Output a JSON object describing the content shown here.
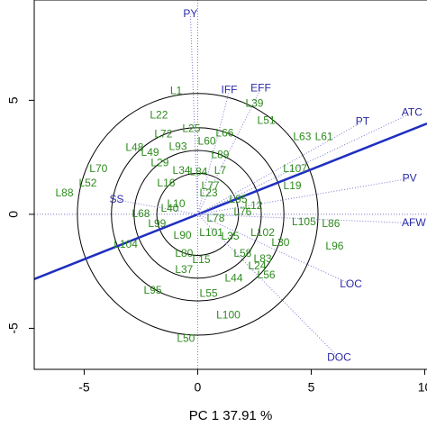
{
  "chart_data": {
    "type": "biplot",
    "xlabel": "PC 1 37.91 %",
    "xlim": [
      -7.2,
      10.1
    ],
    "ylim": [
      -6.8,
      9.4
    ],
    "xticks": [
      -5,
      0,
      5,
      10
    ],
    "yticks": [
      -5,
      0,
      5
    ],
    "circles": [
      1.8,
      2.8,
      3.8,
      5.3
    ],
    "axis_line": {
      "x": [
        -7.2,
        10.1
      ],
      "y": [
        -2.84,
        3.98
      ],
      "color": "#1f2fbf"
    },
    "variable_color": "#2a2aa8",
    "point_color": "#2e8b1e",
    "variables": [
      {
        "label": "PY",
        "x": -0.32,
        "y": 8.78
      },
      {
        "label": "IFF",
        "x": 1.39,
        "y": 5.43
      },
      {
        "label": "EFF",
        "x": 2.78,
        "y": 5.51
      },
      {
        "label": "PT",
        "x": 7.26,
        "y": 4.06
      },
      {
        "label": "ATC",
        "x": 9.44,
        "y": 4.45
      },
      {
        "label": "PV",
        "x": 9.33,
        "y": 1.57
      },
      {
        "label": "AFW",
        "x": 9.52,
        "y": -0.39
      },
      {
        "label": "LOC",
        "x": 6.75,
        "y": -3.07
      },
      {
        "label": "DOC",
        "x": 6.23,
        "y": -6.3
      },
      {
        "label": "SS",
        "x": -3.57,
        "y": 0.63
      }
    ],
    "points": [
      {
        "label": "L1",
        "x": -0.95,
        "y": 5.39
      },
      {
        "label": "L22",
        "x": -1.71,
        "y": 4.33
      },
      {
        "label": "L25",
        "x": -0.28,
        "y": 3.74
      },
      {
        "label": "L39",
        "x": 2.5,
        "y": 4.84
      },
      {
        "label": "L51",
        "x": 3.02,
        "y": 4.09
      },
      {
        "label": "L66",
        "x": 1.19,
        "y": 3.54
      },
      {
        "label": "L63",
        "x": 4.6,
        "y": 3.39
      },
      {
        "label": "L61",
        "x": 5.56,
        "y": 3.39
      },
      {
        "label": "L72",
        "x": -1.51,
        "y": 3.5
      },
      {
        "label": "L60",
        "x": 0.4,
        "y": 3.19
      },
      {
        "label": "L93",
        "x": -0.87,
        "y": 2.95
      },
      {
        "label": "L48",
        "x": -2.78,
        "y": 2.91
      },
      {
        "label": "L89",
        "x": 0.99,
        "y": 2.6
      },
      {
        "label": "L49",
        "x": -2.1,
        "y": 2.68
      },
      {
        "label": "L29",
        "x": -1.67,
        "y": 2.24
      },
      {
        "label": "L107",
        "x": 4.29,
        "y": 1.97
      },
      {
        "label": "L70",
        "x": -4.37,
        "y": 1.97
      },
      {
        "label": "L34",
        "x": -0.71,
        "y": 1.89
      },
      {
        "label": "L84",
        "x": 0.04,
        "y": 1.85
      },
      {
        "label": "L7",
        "x": 0.99,
        "y": 1.89
      },
      {
        "label": "L52",
        "x": -4.84,
        "y": 1.34
      },
      {
        "label": "L19",
        "x": 4.17,
        "y": 1.22
      },
      {
        "label": "L88",
        "x": -5.87,
        "y": 0.91
      },
      {
        "label": "L16",
        "x": -1.39,
        "y": 1.34
      },
      {
        "label": "L77",
        "x": 0.56,
        "y": 1.22
      },
      {
        "label": "L23",
        "x": 0.48,
        "y": 0.91
      },
      {
        "label": "L95",
        "x": 1.79,
        "y": 0.63
      },
      {
        "label": "L12",
        "x": 2.46,
        "y": 0.35
      },
      {
        "label": "L76",
        "x": 1.98,
        "y": 0.08
      },
      {
        "label": "L10",
        "x": -0.95,
        "y": 0.43
      },
      {
        "label": "L40",
        "x": -1.23,
        "y": 0.24
      },
      {
        "label": "L68",
        "x": -2.5,
        "y": 0
      },
      {
        "label": "L99",
        "x": -1.79,
        "y": -0.43
      },
      {
        "label": "L78",
        "x": 0.79,
        "y": -0.2
      },
      {
        "label": "L101",
        "x": 0.6,
        "y": -0.83
      },
      {
        "label": "L105",
        "x": 4.68,
        "y": -0.35
      },
      {
        "label": "L86",
        "x": 5.87,
        "y": -0.43
      },
      {
        "label": "L102",
        "x": 2.86,
        "y": -0.83
      },
      {
        "label": "L30",
        "x": 3.65,
        "y": -1.26
      },
      {
        "label": "L96",
        "x": 6.03,
        "y": -1.42
      },
      {
        "label": "L104",
        "x": -3.17,
        "y": -1.34
      },
      {
        "label": "L35",
        "x": 1.43,
        "y": -0.98
      },
      {
        "label": "L90",
        "x": -0.67,
        "y": -0.94
      },
      {
        "label": "L80",
        "x": -0.6,
        "y": -1.73
      },
      {
        "label": "L58",
        "x": 1.98,
        "y": -1.73
      },
      {
        "label": "L83",
        "x": 2.86,
        "y": -1.97
      },
      {
        "label": "L24",
        "x": 2.62,
        "y": -2.28
      },
      {
        "label": "L15",
        "x": 0.16,
        "y": -2.01
      },
      {
        "label": "L37",
        "x": -0.6,
        "y": -2.44
      },
      {
        "label": "L56",
        "x": 3.02,
        "y": -2.68
      },
      {
        "label": "L44",
        "x": 1.59,
        "y": -2.83
      },
      {
        "label": "L55",
        "x": 0.48,
        "y": -3.5
      },
      {
        "label": "L95",
        "x": -1.98,
        "y": -3.35
      },
      {
        "label": "L100",
        "x": 1.35,
        "y": -4.45
      },
      {
        "label": "L50",
        "x": -0.52,
        "y": -5.47
      }
    ]
  }
}
